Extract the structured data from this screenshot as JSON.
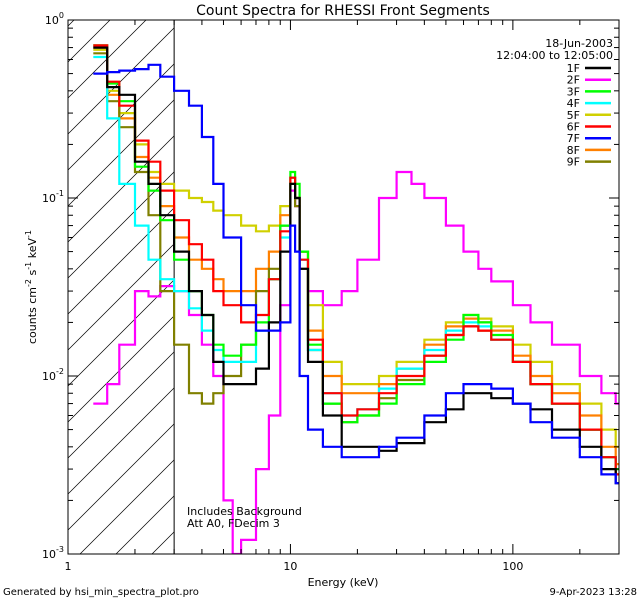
{
  "chart_data": {
    "type": "line",
    "title": "Count Spectra for RHESSI Front Segments",
    "xlabel": "Energy (keV)",
    "ylabel_parts": [
      "counts cm",
      "-2",
      " s",
      "-1",
      " keV",
      "-1"
    ],
    "xscale": "log",
    "yscale": "log",
    "xlim": [
      1,
      300
    ],
    "ylim": [
      0.001,
      1
    ],
    "x_tick_labels": [
      {
        "value": 1,
        "label": "1"
      },
      {
        "value": 10,
        "label": "10"
      },
      {
        "value": 100,
        "label": "100"
      }
    ],
    "y_tick_labels": [
      {
        "value": 1,
        "base": "10",
        "exp": "0"
      },
      {
        "value": 0.1,
        "base": "10",
        "exp": "-1"
      },
      {
        "value": 0.01,
        "base": "10",
        "exp": "-2"
      },
      {
        "value": 0.001,
        "base": "10",
        "exp": "-3"
      }
    ],
    "date": "18-Jun-2003",
    "time_range": "12:04:00 to 12:05:00",
    "legend_position": "top-right",
    "hatched_region_xmax": 3,
    "annotations": [
      "Includes Background",
      "Att A0, FDecim 3"
    ],
    "footer_left": "Generated by hsi_min_spectra_plot.pro",
    "footer_right": "9-Apr-2023 13:28",
    "series": [
      {
        "name": "1F",
        "color": "#000000",
        "x": [
          1.3,
          1.5,
          1.7,
          2.0,
          2.3,
          2.6,
          3.0,
          3.5,
          4.0,
          4.5,
          5.0,
          6.0,
          7.0,
          8.0,
          9.0,
          10.0,
          10.5,
          11.0,
          12.0,
          14.0,
          17.0,
          20.0,
          25.0,
          30.0,
          40.0,
          50.0,
          60.0,
          70.0,
          80.0,
          100.0,
          120.0,
          150.0,
          200.0,
          250.0,
          290.0
        ],
        "y": [
          0.7,
          0.42,
          0.38,
          0.16,
          0.12,
          0.08,
          0.05,
          0.03,
          0.022,
          0.012,
          0.009,
          0.009,
          0.011,
          0.02,
          0.05,
          0.12,
          0.1,
          0.04,
          0.012,
          0.006,
          0.004,
          0.004,
          0.0038,
          0.0042,
          0.0055,
          0.0065,
          0.008,
          0.008,
          0.0075,
          0.007,
          0.0065,
          0.005,
          0.004,
          0.003,
          0.0025
        ]
      },
      {
        "name": "2F",
        "color": "#ff00ff",
        "x": [
          1.3,
          1.5,
          1.7,
          2.0,
          2.3,
          2.6,
          3.0,
          3.5,
          4.0,
          4.5,
          5.0,
          5.5,
          6.0,
          7.0,
          8.0,
          9.0,
          10.0,
          10.5,
          11.0,
          12.0,
          14.0,
          17.0,
          20.0,
          25.0,
          30.0,
          35.0,
          40.0,
          50.0,
          60.0,
          70.0,
          80.0,
          100.0,
          120.0,
          150.0,
          200.0,
          250.0,
          290.0
        ],
        "y": [
          0.007,
          0.009,
          0.015,
          0.03,
          0.028,
          0.032,
          0.03,
          0.022,
          0.015,
          0.01,
          0.002,
          0.001,
          0.0012,
          0.003,
          0.006,
          0.025,
          0.11,
          0.09,
          0.04,
          0.03,
          0.025,
          0.03,
          0.045,
          0.1,
          0.14,
          0.12,
          0.1,
          0.07,
          0.05,
          0.04,
          0.034,
          0.025,
          0.02,
          0.015,
          0.01,
          0.008,
          0.007
        ]
      },
      {
        "name": "3F",
        "color": "#00ff00",
        "x": [
          1.3,
          1.5,
          1.7,
          2.0,
          2.3,
          2.6,
          3.0,
          3.5,
          4.0,
          4.5,
          5.0,
          6.0,
          7.0,
          8.0,
          9.0,
          10.0,
          10.5,
          11.0,
          12.0,
          14.0,
          17.0,
          20.0,
          25.0,
          30.0,
          40.0,
          50.0,
          60.0,
          70.0,
          80.0,
          100.0,
          120.0,
          150.0,
          200.0,
          250.0,
          290.0
        ],
        "y": [
          0.72,
          0.44,
          0.35,
          0.15,
          0.11,
          0.075,
          0.045,
          0.03,
          0.022,
          0.015,
          0.013,
          0.015,
          0.02,
          0.035,
          0.07,
          0.14,
          0.12,
          0.05,
          0.015,
          0.007,
          0.0055,
          0.006,
          0.007,
          0.009,
          0.012,
          0.016,
          0.022,
          0.02,
          0.017,
          0.012,
          0.009,
          0.007,
          0.005,
          0.0035,
          0.003
        ]
      },
      {
        "name": "4F",
        "color": "#00ffff",
        "x": [
          1.3,
          1.5,
          1.7,
          2.0,
          2.3,
          2.6,
          3.0,
          3.5,
          4.0,
          4.5,
          5.0,
          6.0,
          7.0,
          8.0,
          9.0,
          10.0,
          10.5,
          11.0,
          12.0,
          14.0,
          17.0,
          20.0,
          25.0,
          30.0,
          40.0,
          50.0,
          60.0,
          70.0,
          80.0,
          100.0,
          120.0,
          150.0,
          200.0,
          250.0,
          290.0
        ],
        "y": [
          0.62,
          0.28,
          0.12,
          0.07,
          0.045,
          0.035,
          0.03,
          0.024,
          0.018,
          0.014,
          0.012,
          0.012,
          0.018,
          0.035,
          0.06,
          0.13,
          0.1,
          0.045,
          0.014,
          0.008,
          0.006,
          0.0065,
          0.0085,
          0.011,
          0.014,
          0.018,
          0.02,
          0.019,
          0.016,
          0.012,
          0.009,
          0.007,
          0.005,
          0.0035,
          0.003
        ]
      },
      {
        "name": "5F",
        "color": "#d0d000",
        "x": [
          1.3,
          1.5,
          1.7,
          2.0,
          2.3,
          2.6,
          3.0,
          3.5,
          4.0,
          4.5,
          5.0,
          6.0,
          7.0,
          8.0,
          9.0,
          10.0,
          10.5,
          11.0,
          12.0,
          14.0,
          17.0,
          20.0,
          25.0,
          30.0,
          40.0,
          50.0,
          60.0,
          70.0,
          80.0,
          100.0,
          120.0,
          150.0,
          200.0,
          250.0,
          290.0
        ],
        "y": [
          0.68,
          0.4,
          0.3,
          0.2,
          0.14,
          0.12,
          0.11,
          0.1,
          0.095,
          0.085,
          0.08,
          0.07,
          0.065,
          0.07,
          0.09,
          0.12,
          0.1,
          0.05,
          0.025,
          0.012,
          0.009,
          0.009,
          0.01,
          0.012,
          0.016,
          0.02,
          0.022,
          0.021,
          0.019,
          0.015,
          0.012,
          0.009,
          0.007,
          0.005,
          0.004
        ]
      },
      {
        "name": "6F",
        "color": "#ff0000",
        "x": [
          1.3,
          1.5,
          1.7,
          2.0,
          2.3,
          2.6,
          3.0,
          3.5,
          4.0,
          4.5,
          5.0,
          6.0,
          7.0,
          8.0,
          9.0,
          10.0,
          10.5,
          11.0,
          12.0,
          14.0,
          17.0,
          20.0,
          25.0,
          30.0,
          40.0,
          50.0,
          60.0,
          70.0,
          80.0,
          100.0,
          120.0,
          150.0,
          200.0,
          250.0,
          290.0
        ],
        "y": [
          0.72,
          0.45,
          0.33,
          0.21,
          0.16,
          0.11,
          0.075,
          0.055,
          0.045,
          0.03,
          0.025,
          0.02,
          0.022,
          0.035,
          0.065,
          0.13,
          0.1,
          0.045,
          0.016,
          0.008,
          0.006,
          0.0065,
          0.008,
          0.01,
          0.013,
          0.017,
          0.019,
          0.018,
          0.016,
          0.012,
          0.009,
          0.007,
          0.005,
          0.0035,
          0.0028
        ]
      },
      {
        "name": "7F",
        "color": "#0000ff",
        "x": [
          1.3,
          1.5,
          1.7,
          2.0,
          2.3,
          2.6,
          3.0,
          3.5,
          4.0,
          4.5,
          5.0,
          6.0,
          7.0,
          8.0,
          9.0,
          10.0,
          10.5,
          11.0,
          12.0,
          14.0,
          17.0,
          20.0,
          25.0,
          30.0,
          40.0,
          50.0,
          60.0,
          70.0,
          80.0,
          100.0,
          120.0,
          150.0,
          200.0,
          250.0,
          290.0
        ],
        "y": [
          0.5,
          0.51,
          0.52,
          0.53,
          0.56,
          0.48,
          0.4,
          0.33,
          0.22,
          0.12,
          0.06,
          0.025,
          0.018,
          0.018,
          0.02,
          0.07,
          0.05,
          0.01,
          0.005,
          0.004,
          0.0035,
          0.0035,
          0.004,
          0.0045,
          0.006,
          0.008,
          0.009,
          0.009,
          0.0085,
          0.007,
          0.0055,
          0.0045,
          0.0035,
          0.0028,
          0.0025
        ]
      },
      {
        "name": "8F",
        "color": "#ff8000",
        "x": [
          1.3,
          1.5,
          1.7,
          2.0,
          2.3,
          2.6,
          3.0,
          3.5,
          4.0,
          4.5,
          5.0,
          6.0,
          7.0,
          8.0,
          9.0,
          10.0,
          10.5,
          11.0,
          12.0,
          14.0,
          17.0,
          20.0,
          25.0,
          30.0,
          40.0,
          50.0,
          60.0,
          70.0,
          80.0,
          100.0,
          120.0,
          150.0,
          200.0,
          250.0,
          290.0
        ],
        "y": [
          0.7,
          0.38,
          0.28,
          0.17,
          0.13,
          0.09,
          0.06,
          0.045,
          0.04,
          0.035,
          0.03,
          0.03,
          0.04,
          0.05,
          0.08,
          0.13,
          0.1,
          0.05,
          0.018,
          0.01,
          0.008,
          0.008,
          0.009,
          0.011,
          0.015,
          0.019,
          0.021,
          0.02,
          0.018,
          0.013,
          0.01,
          0.008,
          0.006,
          0.004,
          0.0032
        ]
      },
      {
        "name": "9F",
        "color": "#808000",
        "x": [
          1.3,
          1.5,
          1.7,
          2.0,
          2.3,
          2.6,
          3.0,
          3.5,
          4.0,
          4.5,
          5.0,
          6.0,
          7.0,
          8.0,
          9.0,
          10.0,
          10.5,
          11.0,
          12.0,
          14.0,
          17.0,
          20.0,
          25.0,
          30.0,
          40.0,
          50.0,
          60.0,
          70.0,
          80.0,
          100.0,
          120.0,
          150.0,
          200.0,
          250.0,
          290.0
        ],
        "y": [
          0.65,
          0.35,
          0.25,
          0.14,
          0.08,
          0.03,
          0.015,
          0.008,
          0.007,
          0.008,
          0.01,
          0.015,
          0.03,
          0.04,
          0.07,
          0.12,
          0.09,
          0.04,
          0.014,
          0.007,
          0.0055,
          0.006,
          0.0075,
          0.0095,
          0.013,
          0.017,
          0.019,
          0.018,
          0.016,
          0.012,
          0.009,
          0.007,
          0.005,
          0.0035,
          0.0028
        ]
      }
    ]
  }
}
